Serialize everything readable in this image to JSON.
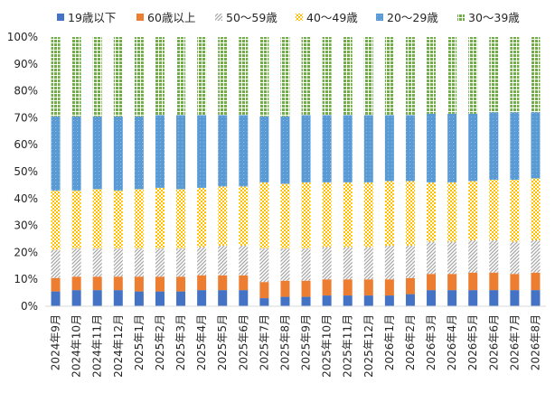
{
  "chart_data": {
    "type": "bar",
    "stacked": true,
    "normalized_percent": true,
    "categories": [
      "2024年9月",
      "2024年10月",
      "2024年11月",
      "2024年12月",
      "2025年1月",
      "2025年2月",
      "2025年3月",
      "2025年4月",
      "2025年5月",
      "2025年6月",
      "2025年7月",
      "2025年8月",
      "2025年9月",
      "2025年10月",
      "2025年11月",
      "2025年12月",
      "2026年1月",
      "2026年2月",
      "2026年3月",
      "2026年4月",
      "2026年5月",
      "2026年6月",
      "2026年7月",
      "2026年8月"
    ],
    "series": [
      {
        "name": "19歳以下",
        "color": "#4472c4",
        "pattern": "solid",
        "values": [
          5.5,
          6,
          6,
          6,
          5.5,
          5.5,
          5.5,
          6,
          6,
          6,
          3,
          3.5,
          3.5,
          4,
          4,
          4,
          4,
          4.5,
          6,
          6,
          6,
          6,
          6,
          6
        ]
      },
      {
        "name": "60歳以上",
        "color": "#ed7d31",
        "pattern": "solid",
        "values": [
          5,
          5,
          5,
          5,
          5.5,
          5.5,
          5.5,
          5.5,
          5.5,
          5.5,
          6,
          6,
          6,
          6,
          6,
          6,
          6,
          6,
          6,
          6,
          6.5,
          6.5,
          6,
          6.5
        ]
      },
      {
        "name": "50～59歳",
        "color": "#a5a5a5",
        "pattern": "diagonal",
        "values": [
          10.5,
          10.5,
          10.5,
          10.5,
          10.5,
          10.5,
          10.5,
          10.5,
          11,
          11,
          12.5,
          12,
          12,
          12,
          12,
          12,
          12.5,
          12,
          12,
          12,
          12,
          12,
          12,
          12
        ]
      },
      {
        "name": "40～49歳",
        "color": "#ffc000",
        "pattern": "checker",
        "values": [
          22,
          21.5,
          22,
          21.5,
          22,
          22.5,
          22,
          22,
          22,
          22,
          24.5,
          24,
          24.5,
          24,
          24,
          24,
          24,
          24,
          22,
          22,
          22,
          22.5,
          23,
          23
        ]
      },
      {
        "name": "20～29歳",
        "color": "#5b9bd5",
        "pattern": "dots",
        "values": [
          27.5,
          27.5,
          27,
          27.5,
          27,
          27,
          27.5,
          27,
          26.5,
          26.5,
          24.5,
          25,
          25,
          25,
          25,
          25,
          24.5,
          24.5,
          25.5,
          25.5,
          25,
          25,
          25,
          24.5
        ]
      },
      {
        "name": "30～39歳",
        "color": "#70ad47",
        "pattern": "grid",
        "values": [
          29.5,
          29.5,
          29.5,
          29.5,
          29.5,
          29,
          29,
          29,
          29,
          29,
          29.5,
          29.5,
          29,
          29,
          29,
          29,
          29,
          29,
          28.5,
          28.5,
          28.5,
          28,
          28,
          28
        ]
      }
    ],
    "y_ticks": [
      "0%",
      "10%",
      "20%",
      "30%",
      "40%",
      "50%",
      "60%",
      "70%",
      "80%",
      "90%",
      "100%"
    ],
    "ylim": [
      0,
      100
    ],
    "grid": false,
    "legend_position": "top"
  }
}
